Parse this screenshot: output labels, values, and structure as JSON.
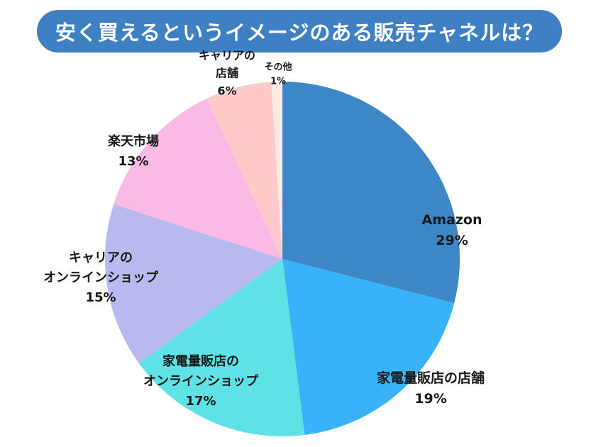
{
  "title": "安く買えるというイメージのある販売チャネルは？",
  "chart_data": {
    "type": "pie",
    "title": "安く買えるというイメージのある販売チャネルは？",
    "start_angle_deg": 0,
    "direction": "clockwise",
    "slices": [
      {
        "label_lines": [
          "Amazon"
        ],
        "value": 29,
        "value_label": "29%",
        "color": "#3e87c7"
      },
      {
        "label_lines": [
          "家電量販店の店舗"
        ],
        "value": 19,
        "value_label": "19%",
        "color": "#38b2f8"
      },
      {
        "label_lines": [
          "家電量販店の",
          "オンラインショップ"
        ],
        "value": 17,
        "value_label": "17%",
        "color": "#5ee2e6"
      },
      {
        "label_lines": [
          "キャリアの",
          "オンラインショップ"
        ],
        "value": 15,
        "value_label": "15%",
        "color": "#b7b9ef"
      },
      {
        "label_lines": [
          "楽天市場"
        ],
        "value": 13,
        "value_label": "13%",
        "color": "#fbb9e6"
      },
      {
        "label_lines": [
          "キャリアの",
          "店舗"
        ],
        "value": 6,
        "value_label": "6%",
        "color": "#fdc9c9"
      },
      {
        "label_lines": [
          "その他"
        ],
        "value": 1,
        "value_label": "1%",
        "color": "#fde8e2"
      }
    ]
  }
}
